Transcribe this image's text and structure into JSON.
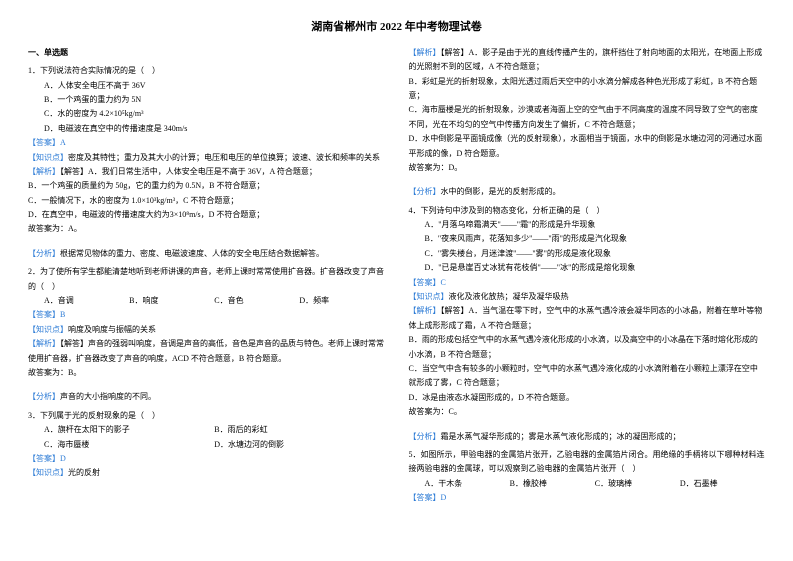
{
  "title": "湖南省郴州市 2022 年中考物理试卷",
  "section": "一、单选题",
  "left": {
    "q1": {
      "stem": "1．下列说法符合实际情况的是（　）",
      "a": "A．人体安全电压不高于 36V",
      "b": "B．一个鸡蛋的重力约为 5N",
      "c": "C．水的密度为 4.2×10⁵kg/m³",
      "d": "D．电磁波在真空中的传播速度是 340m/s",
      "ans_label": "【答案】",
      "ans": "A",
      "kp_label": "【知识点】",
      "kp": "密度及其特性；重力及其大小的计算；电压和电压的单位换算；波速、波长和频率的关系",
      "jx_label": "【解析】",
      "jx_a": "【解答】A．我们日常生活中，人体安全电压是不高于 36V，A 符合题意；",
      "jx_b": "B．一个鸡蛋的质量约为 50g，它的重力约为 0.5N，B 不符合题意；",
      "jx_c": "C．一般情况下，水的密度为 1.0×10³kg/m³，C 不符合题意；",
      "jx_d": "D．在真空中，电磁波的传播速度大约为3×10⁸m/s，D 不符合题意；",
      "jx_end": "故答案为：A。",
      "fenxi_label": "【分析】",
      "fenxi": "根据常见物体的重力、密度、电磁波速度、人体的安全电压结合数据解答。"
    },
    "q2": {
      "stem": "2．为了使所有学生都能清楚地听到老师讲课的声音，老师上课时常常使用扩音器。扩音器改变了声音的（　）",
      "a": "A．音调",
      "b": "B．响度",
      "c": "C．音色",
      "d": "D．频率",
      "ans_label": "【答案】",
      "ans": "B",
      "kp_label": "【知识点】",
      "kp": "响度及响度与振幅的关系",
      "jx_label": "【解析】",
      "jx": "【解答】声音的强弱叫响度，音调是声音的高低，音色是声音的品质与特色。老师上课时常常使用扩音器，扩音器改变了声音的响度，ACD 不符合题意，B 符合题意。",
      "jx_end": "故答案为：B。",
      "fenxi_label": "【分析】",
      "fenxi": "声音的大小指响度的不同。"
    },
    "q3": {
      "stem": "3．下列属于光的反射现象的是（　）",
      "a": "A．旗杆在太阳下的影子",
      "b": "B．雨后的彩虹",
      "c": "C．海市蜃楼",
      "d": "D．水塘边河的倒影",
      "ans_label": "【答案】",
      "ans": "D",
      "kp_label": "【知识点】",
      "kp": "光的反射"
    }
  },
  "right": {
    "q3jx": {
      "jx_label": "【解析】",
      "a": "【解答】A．影子是由于光的直线传播产生的，旗杆挡住了射向地面的太阳光，在地面上形成的光照射不到的区域，A 不符合题意；",
      "b": "B．彩虹是光的折射现象，太阳光透过雨后天空中的小水滴分解成各种色光形成了彩虹，B 不符合题意；",
      "c": "C．海市蜃楼是光的折射现象，沙漠或者海面上空的空气由于不同高度的温度不同导致了空气的密度不同，光在不均匀的空气中传播方向发生了偏折，C 不符合题意；",
      "d": "D．水中倒影是平面镜成像（光的反射现象），水面相当于镜面，水中的倒影是水塘边河的河通过水面平形成的像，D 符合题意。",
      "end": "故答案为：D。",
      "fenxi_label": "【分析】",
      "fenxi": "水中的倒影，是光的反射形成的。"
    },
    "q4": {
      "stem": "4．下列诗句中涉及到的物态变化，分析正确的是（　）",
      "a": "A．\"月落乌啼霜满天\"——\"霜\"的形成是升华现象",
      "b": "B．\"夜来风雨声，花落知多少\"——\"雨\"的形成是汽化现象",
      "c": "C．\"雾失楼台，月迷津渡\"——\"雾\"的形成是液化现象",
      "d": "D．\"已是悬崖百丈冰犹有花枝俏\"——\"冰\"的形成是熔化现象",
      "ans_label": "【答案】",
      "ans": "C",
      "kp_label": "【知识点】",
      "kp": "液化及液化放热；凝华及凝华吸热",
      "jx_label": "【解析】",
      "jx_a": "【解答】A．当气温在零下时，空气中的水蒸气遇冷液会凝华同态的小冰晶，附着在草叶等物体上成形形成了霜，A 不符合题意；",
      "jx_b": "B．雨的形成包括空气中的水蒸气遇冷液化形成的小水滴，以及高空中的小冰晶在下落时熔化形成的小水滴，B 不符合题意；",
      "jx_c": "C．当空气中含有较多的小颗粒时，空气中的水蒸气遇冷液化成的小水滴附着在小颗粒上漂浮在空中就形成了雾，C 符合题意；",
      "jx_d": "D．冰是由液态水凝固形成的，D 不符合题意。",
      "jx_end": "故答案为：C。",
      "fenxi_label": "【分析】",
      "fenxi": "霜是水蒸气凝华形成的；雾是水蒸气液化形成的；冰的凝固形成的；"
    },
    "q5": {
      "stem": "5．如图所示，甲验电器的金属箔片张开，乙验电器的金属箔片闭合。用绝缘的手柄将以下哪种材料连接两验电器的金属球，可以观察到乙验电器的金属箔片张开（　）",
      "a": "A．干木条",
      "b": "B．橡胶棒",
      "c": "C．玻璃棒",
      "d": "D．石墨棒",
      "ans_label": "【答案】",
      "ans": "D"
    }
  }
}
